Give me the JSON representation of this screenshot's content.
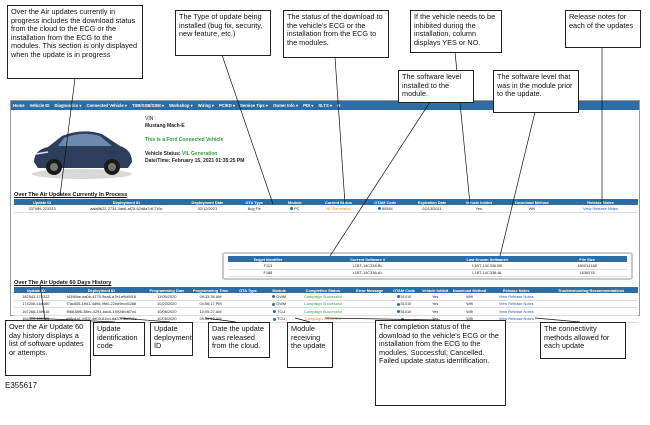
{
  "callouts": {
    "top": [
      "Over the Air updates currently in progress includes the download status from the cloud to the ECG or the installation from the ECG to the modules. This section is only displayed when the update is in progress",
      "The Type of update being installed (bug fix, security, new feature, etc.)",
      "The status of the download to the vehicle's ECG or the installation from the ECG to the modules.",
      "If the vehicle needs to be inhibited during the installation, column displays YES or NO.",
      "Release notes for each of the updates",
      "The software level installed to the module.",
      "The software level that was in the module prior to the update."
    ],
    "bottom": [
      "Over the Air Update 60 day history displays a list of software updates or attempts.",
      "Update identification code",
      "Update deployment ID",
      "Date the update was released from the cloud.",
      "Module receiving the update",
      "The completion status of the download to the vehicle's ECG or the installation from the ECG to the modules. Successful, Cancelled. Failed update status identification.",
      "The connectivity methods allowed for each update"
    ]
  },
  "nav": [
    "Home",
    "Vehicle ID",
    "Diagnostics ▾",
    "Connected Vehicle ▾",
    "TSB/GSB/SSM ▾",
    "Workshop ▾",
    "Wiring ▾",
    "PC/ED ▾",
    "Service Tips ▾",
    "Owner Info ▾",
    "PDI ▾",
    "SLTS ▾",
    "⚙"
  ],
  "vehicle": {
    "vin": "VIN :",
    "model": "Mustang Mach-E",
    "connected": "This is a Ford Connected Vehicle",
    "status_label": "Vehicle Status:",
    "status_value": "VIL Generation",
    "datetime": "Date/Time: February 15, 2021 01:35:25 PM"
  },
  "current": {
    "title": "Over The Air Updates Currently In Process",
    "columns": [
      "Update ID",
      "Deployment ID",
      "Deployment Date",
      "OTA Type",
      "Module",
      "Current Status",
      "OTAM Code",
      "Expiration Date",
      "Vehicle Inhibit",
      "Download Method",
      "Release Notes"
    ],
    "rows": [
      [
        "237089-223313",
        "aab6f622-2734-4ab6-af75-62d8a7df-719c",
        "02/12/2021",
        "Bug Fix",
        "PC",
        "VIL Generation",
        "50584",
        "02/13/2021",
        "Yes",
        "Wifi",
        "View Release Notes"
      ]
    ],
    "status_color": "#e0901a",
    "software": {
      "columns": [
        "Target Identifier",
        "Current Software #",
        "Last Known Software#",
        "File Size"
      ],
      "rows": [
        [
          "F113",
          "L1BT-14C336-BL",
          "L1BT-14C336-BK",
          "180014188"
        ],
        [
          "F188",
          "L1BT-14C336-AL",
          "L1BT-14C336-AL",
          "1636278"
        ]
      ]
    }
  },
  "history": {
    "title": "Over The Air Update 60 Days History",
    "columns": [
      "Update ID",
      "Deployment ID",
      "Programming Date",
      "Programming Time",
      "OTA Type",
      "Module",
      "Completion Status",
      "Error Message",
      "OTAM Code",
      "Vehicle Inhibit",
      "Download Method",
      "Release Notes",
      "Troubleshooting Recommendations"
    ],
    "rows": [
      [
        "182543-172322",
        "f4398be-ea0b-4175-9ea6-a7e1af0d5f18",
        "11/05/2020",
        "09:33:36 AM",
        null,
        "GWM",
        "Campaign Successful",
        null,
        "51010",
        "Yes",
        "Wifi",
        "View Release Notes",
        null
      ],
      [
        "174206-164480",
        "f7ac805-1961-4d96-9fd0-22bd9ecc5288",
        "10/20/2020",
        "04:56:17 PM",
        null,
        "GWM",
        "Campaign Successful",
        null,
        "51010",
        "Yes",
        "Wifi",
        "View Release Notes",
        null
      ],
      [
        "167265-159015",
        "f96638f6-38ec-4291-bac6-1f0f2dbd67c4",
        "10/06/2020",
        "10:05:27 AM",
        null,
        "TCU",
        "Campaign Successful",
        null,
        "51010",
        "Yes",
        "Wifi",
        "View Release Notes",
        null
      ],
      [
        "164509-155785",
        "a58c4a1-b302-4e03-81cd-aa207f8a0b8e",
        "10/06/2020",
        "09:30:10 AM",
        null,
        "TCU",
        "Campaign Cancelled",
        null,
        "--",
        "Yes",
        "Wifi",
        "View Release Notes",
        null
      ]
    ],
    "status_colors": [
      "#2e9e3e",
      "#2e9e3e",
      "#2e9e3e",
      "#e0901a"
    ]
  },
  "figure_id": "E355617"
}
